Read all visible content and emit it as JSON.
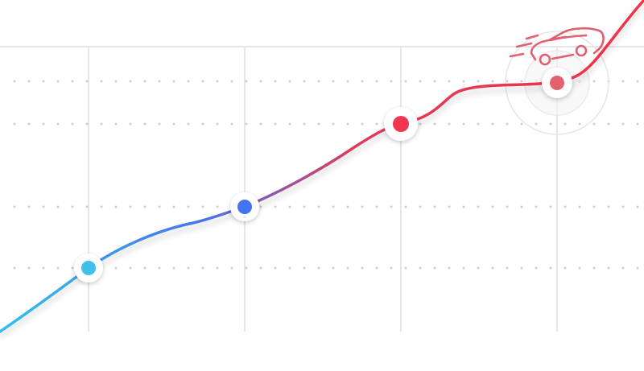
{
  "illustration": {
    "kind": "progress-line",
    "icon": "car-icon",
    "milestones": [
      {
        "name": "milestone-1",
        "color": "#3ec1e6"
      },
      {
        "name": "milestone-2",
        "color": "#4573f2"
      },
      {
        "name": "milestone-3",
        "color": "#f2364f"
      },
      {
        "name": "milestone-4",
        "color": "#e2636f"
      }
    ],
    "gradient": [
      "#31c0eb",
      "#4a72ef",
      "#e23a57",
      "#ef3347"
    ],
    "grid_color": "#e6e6e6",
    "dot_color": "#cfcfcf",
    "icon_color": "#e0606e",
    "halo_color": "#e6e6e6"
  }
}
